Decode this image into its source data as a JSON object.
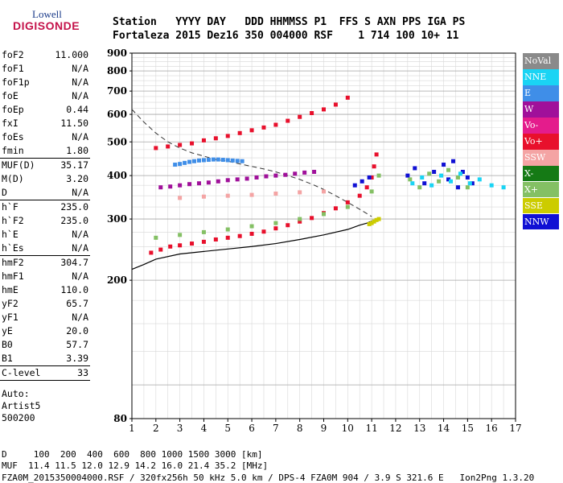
{
  "logo": {
    "top": "Lowell",
    "bottom": "DIGISONDE"
  },
  "header": {
    "line1": "Station   YYYY DAY   DDD HHMMSS P1  FFS S AXN PPS IGA PS",
    "line2": "Fortaleza 2015 Dez16 350 004000 RSF    1 714 100 10+ 11"
  },
  "params": [
    [
      {
        "name": "foF2",
        "value": "11.000"
      },
      {
        "name": "foF1",
        "value": "N/A"
      },
      {
        "name": "foF1p",
        "value": "N/A"
      },
      {
        "name": "foE",
        "value": "N/A"
      },
      {
        "name": "foEp",
        "value": "0.44"
      },
      {
        "name": "fxI",
        "value": "11.50"
      },
      {
        "name": "foEs",
        "value": "N/A"
      },
      {
        "name": "fmin",
        "value": "1.80"
      }
    ],
    [
      {
        "name": "MUF(D)",
        "value": "35.17"
      },
      {
        "name": "M(D)",
        "value": "3.20"
      },
      {
        "name": "D",
        "value": "N/A"
      }
    ],
    [
      {
        "name": "h`F",
        "value": "235.0"
      },
      {
        "name": "h`F2",
        "value": "235.0"
      },
      {
        "name": "h`E",
        "value": "N/A"
      },
      {
        "name": "h`Es",
        "value": "N/A"
      }
    ],
    [
      {
        "name": "hmF2",
        "value": "304.7"
      },
      {
        "name": "hmF1",
        "value": "N/A"
      },
      {
        "name": "hmE",
        "value": "110.0"
      },
      {
        "name": "yF2",
        "value": "65.7"
      },
      {
        "name": "yF1",
        "value": "N/A"
      },
      {
        "name": "yE",
        "value": "20.0"
      },
      {
        "name": "B0",
        "value": "57.7"
      },
      {
        "name": "B1",
        "value": "3.39"
      }
    ],
    [
      {
        "name": "C-level",
        "value": "33"
      }
    ]
  ],
  "auto": {
    "line1": "Auto:",
    "line2": "Artist5",
    "line3": "500200"
  },
  "legend": [
    {
      "label": "NoVal",
      "color": "#8a8a8a"
    },
    {
      "label": "NNE",
      "color": "#1ad4f4"
    },
    {
      "label": "E",
      "color": "#3f8ee8"
    },
    {
      "label": "W",
      "color": "#a0109a"
    },
    {
      "label": "Vo-",
      "color": "#e41c8c"
    },
    {
      "label": "Vo+",
      "color": "#e8102c"
    },
    {
      "label": "SSW",
      "color": "#f4a4a4"
    },
    {
      "label": "X-",
      "color": "#157a15"
    },
    {
      "label": "X+",
      "color": "#84c064"
    },
    {
      "label": "SSE",
      "color": "#cccc00"
    },
    {
      "label": "NNW",
      "color": "#1010d4"
    }
  ],
  "footer": {
    "line1": "D     100  200  400  600  800 1000 1500 3000 [km]",
    "line2": "MUF  11.4 11.5 12.0 12.9 14.2 16.0 21.4 35.2 [MHz]",
    "line3": "FZA0M_2015350004000.RSF / 320fx256h 50 kHz 5.0 km / DPS-4 FZA0M 904 / 3.9 S 321.6 E   Ion2Png 1.3.20"
  },
  "chart_data": {
    "type": "scatter",
    "title": "",
    "xlabel": "",
    "ylabel": "",
    "xlim": [
      1,
      17
    ],
    "ylim": [
      80,
      900
    ],
    "y_scale": "log",
    "x_ticks": [
      1,
      2,
      3,
      4,
      5,
      6,
      7,
      8,
      9,
      10,
      11,
      12,
      13,
      14,
      15,
      16,
      17
    ],
    "y_ticks": [
      80,
      200,
      300,
      400,
      500,
      600,
      700,
      800,
      900
    ],
    "grid": "on",
    "legend_position": "right",
    "series": [
      {
        "name": "Vo+",
        "color": "#e8102c",
        "x": [
          1.8,
          2.2,
          2.6,
          3.0,
          3.5,
          4.0,
          4.5,
          5.0,
          5.5,
          6.0,
          6.5,
          7.0,
          7.5,
          8.0,
          8.5,
          9.0,
          9.5,
          10.0,
          10.5,
          10.8,
          11.0,
          11.1,
          11.2
        ],
        "y": [
          240,
          245,
          250,
          252,
          255,
          258,
          262,
          265,
          268,
          272,
          276,
          282,
          288,
          295,
          302,
          312,
          322,
          335,
          350,
          370,
          395,
          425,
          460
        ]
      },
      {
        "name": "Vo+",
        "color": "#e8102c",
        "x": [
          2.0,
          2.5,
          3.0,
          3.5,
          4.0,
          4.5,
          5.0,
          5.5,
          6.0,
          6.5,
          7.0,
          7.5,
          8.0,
          8.5,
          9.0,
          9.5,
          10.0
        ],
        "y": [
          480,
          485,
          490,
          495,
          505,
          512,
          520,
          530,
          540,
          550,
          560,
          575,
          590,
          605,
          620,
          640,
          670
        ]
      },
      {
        "name": "X+",
        "color": "#84c064",
        "x": [
          2.0,
          3.0,
          4.0,
          5.0,
          6.0,
          7.0,
          8.0,
          9.0,
          10.0,
          11.0,
          11.3
        ],
        "y": [
          265,
          270,
          275,
          280,
          286,
          292,
          300,
          310,
          325,
          360,
          400
        ]
      },
      {
        "name": "SSE",
        "color": "#cccc00",
        "x": [
          10.9,
          11.0,
          11.1,
          11.2,
          11.3
        ],
        "y": [
          290,
          292,
          295,
          298,
          300
        ]
      },
      {
        "name": "E",
        "color": "#3f8ee8",
        "x": [
          2.8,
          3.0,
          3.2,
          3.4,
          3.6,
          3.8,
          4.0,
          4.2,
          4.4,
          4.6,
          4.8,
          5.0,
          5.2,
          5.4,
          5.6
        ],
        "y": [
          430,
          432,
          435,
          438,
          440,
          442,
          443,
          444,
          445,
          445,
          444,
          443,
          442,
          441,
          440
        ]
      },
      {
        "name": "W",
        "color": "#a0109a",
        "x": [
          2.2,
          2.6,
          3.0,
          3.4,
          3.8,
          4.2,
          4.6,
          5.0,
          5.4,
          5.8,
          6.2,
          6.6,
          7.0,
          7.4,
          7.8,
          8.2,
          8.6
        ],
        "y": [
          370,
          372,
          375,
          378,
          380,
          382,
          385,
          388,
          390,
          392,
          395,
          398,
          400,
          402,
          405,
          408,
          410
        ]
      },
      {
        "name": "SSW",
        "color": "#f4a4a4",
        "x": [
          3.0,
          4.0,
          5.0,
          6.0,
          7.0,
          8.0,
          9.0
        ],
        "y": [
          345,
          348,
          350,
          352,
          355,
          358,
          360
        ]
      },
      {
        "name": "NNW",
        "color": "#1010d4",
        "x": [
          12.5,
          12.8,
          13.2,
          13.6,
          14.0,
          14.2,
          14.4,
          14.6,
          14.8,
          15.0,
          15.2,
          10.3,
          10.6,
          10.9
        ],
        "y": [
          400,
          420,
          380,
          410,
          430,
          390,
          440,
          370,
          410,
          395,
          380,
          375,
          385,
          395
        ]
      },
      {
        "name": "X+",
        "color": "#84c064",
        "x": [
          12.6,
          13.0,
          13.4,
          13.8,
          14.2,
          14.6,
          15.0
        ],
        "y": [
          390,
          370,
          405,
          385,
          415,
          395,
          370
        ]
      },
      {
        "name": "NNE",
        "color": "#1ad4f4",
        "x": [
          12.7,
          13.1,
          13.5,
          13.9,
          14.3,
          14.7,
          15.1,
          15.5,
          16.0,
          16.5
        ],
        "y": [
          380,
          395,
          375,
          400,
          385,
          405,
          380,
          390,
          375,
          370
        ]
      }
    ],
    "profile_curve": {
      "x": [
        1.0,
        1.5,
        2.0,
        3.0,
        4.0,
        5.0,
        6.0,
        7.0,
        8.0,
        9.0,
        10.0,
        10.5,
        10.8,
        11.0
      ],
      "y": [
        215,
        222,
        230,
        238,
        242,
        246,
        250,
        255,
        262,
        270,
        280,
        288,
        292,
        296
      ]
    },
    "dashed_curve": {
      "x": [
        1.0,
        1.5,
        2.0,
        2.5,
        3.0,
        3.5,
        4.0,
        4.5,
        5.0,
        5.5,
        6.0,
        6.5,
        7.0,
        7.5,
        8.0,
        8.5,
        9.0,
        9.5,
        10.0,
        10.5,
        11.0
      ],
      "y": [
        620,
        570,
        530,
        500,
        480,
        465,
        455,
        445,
        440,
        432,
        425,
        418,
        410,
        400,
        390,
        378,
        365,
        350,
        335,
        320,
        305
      ]
    }
  }
}
